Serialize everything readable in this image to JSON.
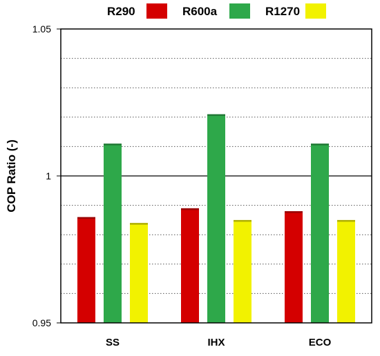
{
  "chart_data": {
    "type": "bar",
    "title": "",
    "xlabel": "",
    "ylabel": "COP Ratio (-)",
    "ylim": [
      0.95,
      1.05
    ],
    "y_ticks": [
      "0.95",
      "1",
      "1.05"
    ],
    "grid": "horizontal dotted",
    "reference_line": 1.0,
    "legend_position": "top",
    "categories": [
      "SS",
      "IHX",
      "ECO"
    ],
    "series": [
      {
        "name": "R290",
        "color": "#d40000",
        "values": [
          0.986,
          0.989,
          0.988
        ]
      },
      {
        "name": "R600a",
        "color": "#2ea84a",
        "values": [
          1.011,
          1.021,
          1.011
        ]
      },
      {
        "name": "R1270",
        "color": "#f2f200",
        "values": [
          0.984,
          0.985,
          0.985
        ]
      }
    ]
  }
}
